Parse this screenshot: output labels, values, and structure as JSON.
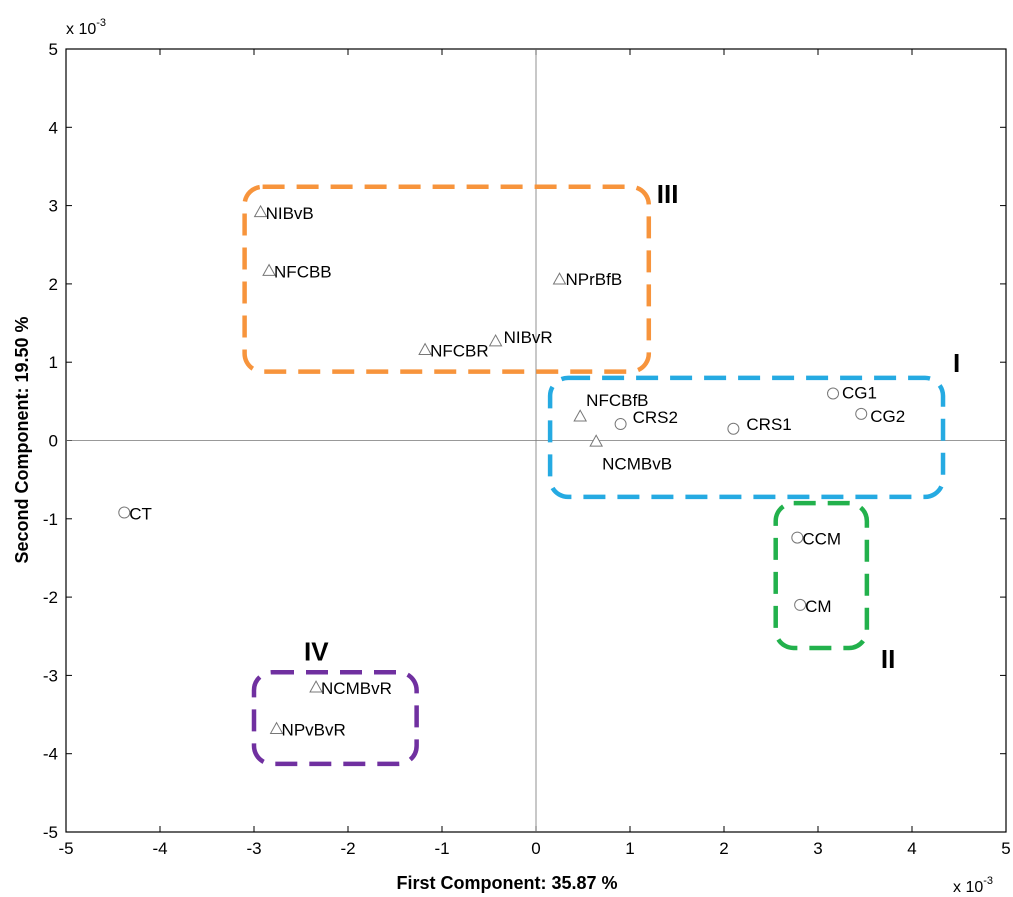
{
  "chart_data": {
    "type": "scatter",
    "title": "",
    "xlabel": "First Component: 35.87 %",
    "ylabel": "Second Component: 19.50 %",
    "x_multiplier_label": "x 10",
    "x_multiplier_exp": "-3",
    "y_multiplier_label": "x 10",
    "y_multiplier_exp": "-3",
    "xlim": [
      -5,
      5
    ],
    "ylim": [
      -5,
      5
    ],
    "xticks": [
      "-5",
      "-4",
      "-3",
      "-2",
      "-1",
      "0",
      "1",
      "2",
      "3",
      "4",
      "5"
    ],
    "yticks": [
      "-5",
      "-4",
      "-3",
      "-2",
      "-1",
      "0",
      "1",
      "2",
      "3",
      "4",
      "5"
    ],
    "grid": false,
    "zero_lines": true,
    "points": [
      {
        "label": "NIBvB",
        "x": -2.93,
        "y": 2.92,
        "marker": "triangle"
      },
      {
        "label": "NFCBB",
        "x": -2.84,
        "y": 2.17,
        "marker": "triangle"
      },
      {
        "label": "NFCBR",
        "x": -1.18,
        "y": 1.16,
        "marker": "triangle"
      },
      {
        "label": "NIBvR",
        "x": -0.43,
        "y": 1.27,
        "marker": "triangle"
      },
      {
        "label": "NPrBfB",
        "x": 0.25,
        "y": 2.06,
        "marker": "triangle"
      },
      {
        "label": "NFCBfB",
        "x": 0.47,
        "y": 0.31,
        "marker": "triangle"
      },
      {
        "label": "NCMBvB",
        "x": 0.64,
        "y": -0.01,
        "marker": "triangle"
      },
      {
        "label": "CRS2",
        "x": 0.9,
        "y": 0.21,
        "marker": "circle"
      },
      {
        "label": "CRS1",
        "x": 2.1,
        "y": 0.15,
        "marker": "circle"
      },
      {
        "label": "CG1",
        "x": 3.16,
        "y": 0.6,
        "marker": "circle"
      },
      {
        "label": "CG2",
        "x": 3.46,
        "y": 0.34,
        "marker": "circle"
      },
      {
        "label": "CCM",
        "x": 2.78,
        "y": -1.24,
        "marker": "circle"
      },
      {
        "label": "CM",
        "x": 2.81,
        "y": -2.1,
        "marker": "circle"
      },
      {
        "label": "CT",
        "x": -4.38,
        "y": -0.92,
        "marker": "circle"
      },
      {
        "label": "NCMBvR",
        "x": -2.34,
        "y": -3.15,
        "marker": "triangle"
      },
      {
        "label": "NPvBvR",
        "x": -2.76,
        "y": -3.68,
        "marker": "triangle"
      }
    ],
    "groups": [
      {
        "name": "III",
        "color": "#F7943C",
        "x_range": [
          -3.1,
          1.2
        ],
        "y_range": [
          0.88,
          3.24
        ]
      },
      {
        "name": "I",
        "color": "#25AAE2",
        "x_range": [
          0.15,
          4.33
        ],
        "y_range": [
          -0.72,
          0.8
        ]
      },
      {
        "name": "II",
        "color": "#22B14C",
        "x_range": [
          2.55,
          3.52
        ],
        "y_range": [
          -2.65,
          -0.8
        ]
      },
      {
        "name": "IV",
        "color": "#7030A0",
        "x_range": [
          -3.0,
          -1.27
        ],
        "y_range": [
          -4.13,
          -2.96
        ]
      }
    ]
  }
}
